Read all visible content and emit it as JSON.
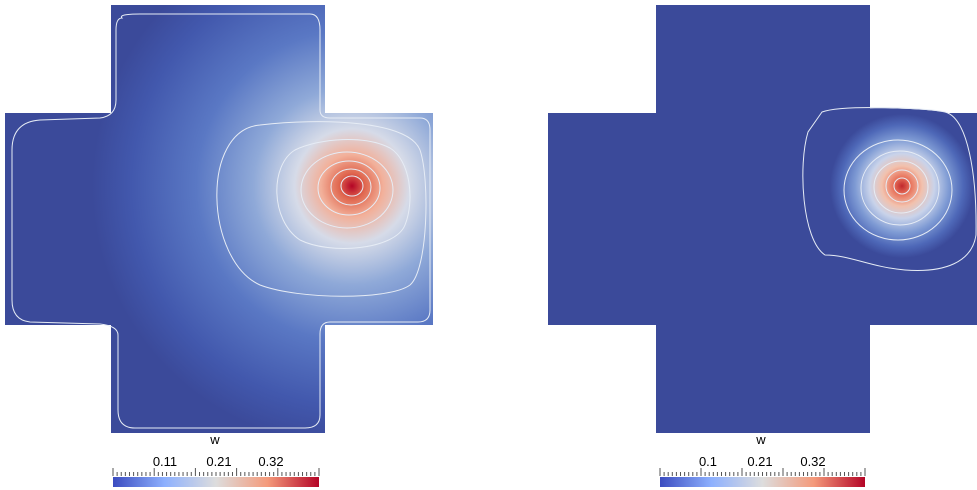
{
  "panels": [
    {
      "colorbar": {
        "title": "w",
        "ticks": [
          "0.11",
          "0.21",
          "0.32"
        ]
      },
      "colors": {
        "domain": "#3b4a9a",
        "low": "#3b4cc0",
        "mid": "#dddddd",
        "high": "#b40426",
        "contour": "#e6ecf5"
      }
    },
    {
      "colorbar": {
        "title": "w",
        "ticks": [
          "0.1",
          "0.21",
          "0.32"
        ]
      },
      "colors": {
        "domain": "#3b4a9a",
        "low": "#3b4cc0",
        "mid": "#dddddd",
        "high": "#b40426",
        "contour": "#e6ecf5"
      }
    }
  ]
}
